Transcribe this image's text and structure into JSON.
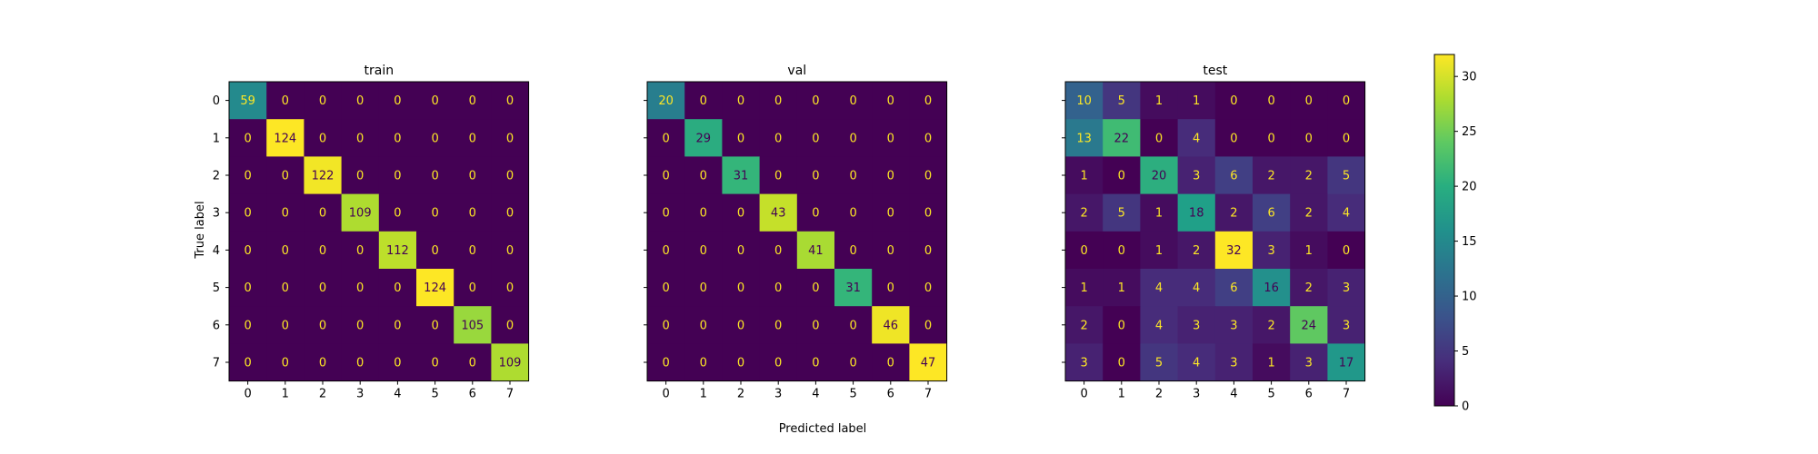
{
  "figure": {
    "xlabel": "Predicted label",
    "ylabel": "True label"
  },
  "chart_data": [
    {
      "type": "heatmap",
      "title": "train",
      "categories": [
        "0",
        "1",
        "2",
        "3",
        "4",
        "5",
        "6",
        "7"
      ],
      "matrix": [
        [
          59,
          0,
          0,
          0,
          0,
          0,
          0,
          0
        ],
        [
          0,
          124,
          0,
          0,
          0,
          0,
          0,
          0
        ],
        [
          0,
          0,
          122,
          0,
          0,
          0,
          0,
          0
        ],
        [
          0,
          0,
          0,
          109,
          0,
          0,
          0,
          0
        ],
        [
          0,
          0,
          0,
          0,
          112,
          0,
          0,
          0
        ],
        [
          0,
          0,
          0,
          0,
          0,
          124,
          0,
          0
        ],
        [
          0,
          0,
          0,
          0,
          0,
          0,
          105,
          0
        ],
        [
          0,
          0,
          0,
          0,
          0,
          0,
          0,
          109
        ]
      ],
      "vmax": 124,
      "ylabel": "True label"
    },
    {
      "type": "heatmap",
      "title": "val",
      "categories": [
        "0",
        "1",
        "2",
        "3",
        "4",
        "5",
        "6",
        "7"
      ],
      "matrix": [
        [
          20,
          0,
          0,
          0,
          0,
          0,
          0,
          0
        ],
        [
          0,
          29,
          0,
          0,
          0,
          0,
          0,
          0
        ],
        [
          0,
          0,
          31,
          0,
          0,
          0,
          0,
          0
        ],
        [
          0,
          0,
          0,
          43,
          0,
          0,
          0,
          0
        ],
        [
          0,
          0,
          0,
          0,
          41,
          0,
          0,
          0
        ],
        [
          0,
          0,
          0,
          0,
          0,
          31,
          0,
          0
        ],
        [
          0,
          0,
          0,
          0,
          0,
          0,
          46,
          0
        ],
        [
          0,
          0,
          0,
          0,
          0,
          0,
          0,
          47
        ]
      ],
      "vmax": 47,
      "xlabel": "Predicted label"
    },
    {
      "type": "heatmap",
      "title": "test",
      "categories": [
        "0",
        "1",
        "2",
        "3",
        "4",
        "5",
        "6",
        "7"
      ],
      "matrix": [
        [
          10,
          5,
          1,
          1,
          0,
          0,
          0,
          0
        ],
        [
          13,
          22,
          0,
          4,
          0,
          0,
          0,
          0
        ],
        [
          1,
          0,
          20,
          3,
          6,
          2,
          2,
          5
        ],
        [
          2,
          5,
          1,
          18,
          2,
          6,
          2,
          4
        ],
        [
          0,
          0,
          1,
          2,
          32,
          3,
          1,
          0
        ],
        [
          1,
          1,
          4,
          4,
          6,
          16,
          2,
          3
        ],
        [
          2,
          0,
          4,
          3,
          3,
          2,
          24,
          3
        ],
        [
          3,
          0,
          5,
          4,
          3,
          1,
          3,
          17
        ]
      ],
      "vmax": 32
    }
  ],
  "colorbar": {
    "colormap": "viridis",
    "range": [
      0,
      32
    ],
    "ticks": [
      "0",
      "5",
      "10",
      "15",
      "20",
      "25",
      "30"
    ],
    "tick_values": [
      0,
      5,
      10,
      15,
      20,
      25,
      30
    ]
  }
}
